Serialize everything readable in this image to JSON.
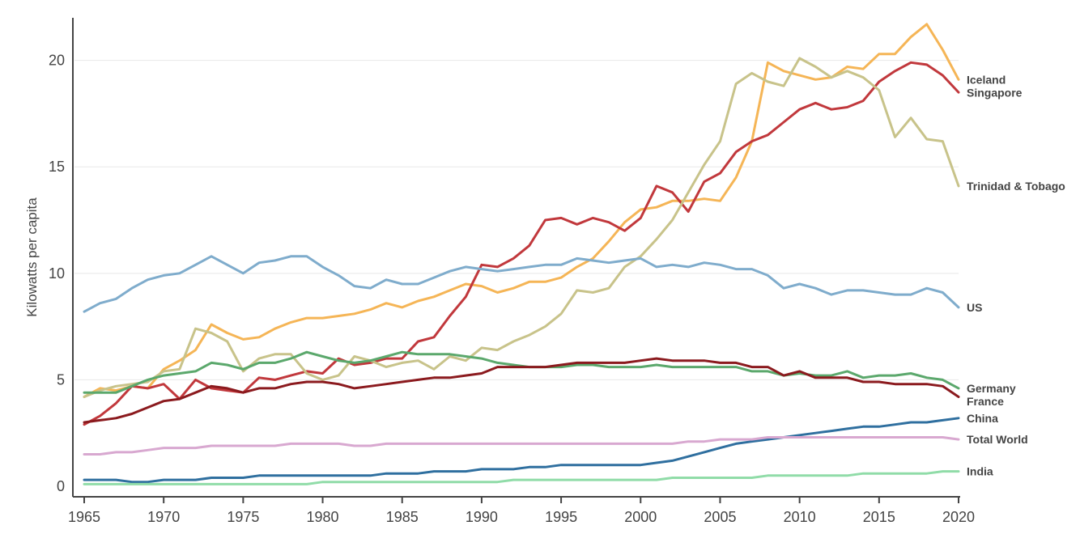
{
  "chart_data": {
    "type": "line",
    "title": "",
    "xlabel": "",
    "ylabel": "Kilowatts per capita",
    "xlim": [
      1965,
      2020
    ],
    "ylim": [
      0,
      22
    ],
    "grid": true,
    "legend": "none (series names printed at right end of each line)",
    "x_ticks": [
      1965,
      1970,
      1975,
      1980,
      1985,
      1990,
      1995,
      2000,
      2005,
      2010,
      2015,
      2020
    ],
    "y_ticks": [
      0,
      5,
      10,
      15,
      20
    ],
    "series": [
      {
        "name": "Iceland",
        "color": "#f5b556",
        "values": [
          4.2,
          4.6,
          4.5,
          4.7,
          4.6,
          5.5,
          5.9,
          6.4,
          7.6,
          7.2,
          6.9,
          7.0,
          7.4,
          7.7,
          7.9,
          7.9,
          8.0,
          8.1,
          8.3,
          8.6,
          8.4,
          8.7,
          8.9,
          9.2,
          9.5,
          9.4,
          9.1,
          9.3,
          9.6,
          9.6,
          9.8,
          10.3,
          10.7,
          11.5,
          12.4,
          13.0,
          13.1,
          13.4,
          13.4,
          13.5,
          13.4,
          14.5,
          16.2,
          19.9,
          19.5,
          19.3,
          19.1,
          19.2,
          19.7,
          19.6,
          20.3,
          20.3,
          21.1,
          21.7,
          20.5,
          19.1
        ]
      },
      {
        "name": "Singapore",
        "color": "#c1383c",
        "values": [
          2.9,
          3.3,
          3.9,
          4.7,
          4.6,
          4.8,
          4.1,
          5.0,
          4.6,
          4.5,
          4.4,
          5.1,
          5.0,
          5.2,
          5.4,
          5.3,
          6.0,
          5.7,
          5.8,
          6.0,
          6.0,
          6.8,
          7.0,
          8.0,
          8.9,
          10.4,
          10.3,
          10.7,
          11.3,
          12.5,
          12.6,
          12.3,
          12.6,
          12.4,
          12.0,
          12.6,
          14.1,
          13.8,
          12.9,
          14.3,
          14.7,
          15.7,
          16.2,
          16.5,
          17.1,
          17.7,
          18.0,
          17.7,
          17.8,
          18.1,
          19.0,
          19.5,
          19.9,
          19.8,
          19.3,
          18.5
        ]
      },
      {
        "name": "Trinidad & Tobago",
        "color": "#c8c38a",
        "values": [
          4.2,
          4.5,
          4.7,
          4.8,
          4.9,
          5.4,
          5.5,
          7.4,
          7.2,
          6.8,
          5.4,
          6.0,
          6.2,
          6.2,
          5.3,
          5.0,
          5.2,
          6.1,
          5.9,
          5.6,
          5.8,
          5.9,
          5.5,
          6.1,
          5.9,
          6.5,
          6.4,
          6.8,
          7.1,
          7.5,
          8.1,
          9.2,
          9.1,
          9.3,
          10.3,
          10.8,
          11.6,
          12.5,
          13.8,
          15.1,
          16.2,
          18.9,
          19.4,
          19.0,
          18.8,
          20.1,
          19.7,
          19.2,
          19.5,
          19.2,
          18.6,
          16.4,
          17.3,
          16.3,
          16.2,
          14.1
        ]
      },
      {
        "name": "US",
        "color": "#7faccc",
        "values": [
          8.2,
          8.6,
          8.8,
          9.3,
          9.7,
          9.9,
          10.0,
          10.4,
          10.8,
          10.4,
          10.0,
          10.5,
          10.6,
          10.8,
          10.8,
          10.3,
          9.9,
          9.4,
          9.3,
          9.7,
          9.5,
          9.5,
          9.8,
          10.1,
          10.3,
          10.2,
          10.1,
          10.2,
          10.3,
          10.4,
          10.4,
          10.7,
          10.6,
          10.5,
          10.6,
          10.7,
          10.3,
          10.4,
          10.3,
          10.5,
          10.4,
          10.2,
          10.2,
          9.9,
          9.3,
          9.5,
          9.3,
          9.0,
          9.2,
          9.2,
          9.1,
          9.0,
          9.0,
          9.3,
          9.1,
          8.4
        ]
      },
      {
        "name": "Germany",
        "color": "#5ba86c",
        "values": [
          4.4,
          4.4,
          4.4,
          4.7,
          5.0,
          5.2,
          5.3,
          5.4,
          5.8,
          5.7,
          5.5,
          5.8,
          5.8,
          6.0,
          6.3,
          6.1,
          5.9,
          5.8,
          5.9,
          6.1,
          6.3,
          6.2,
          6.2,
          6.2,
          6.1,
          6.0,
          5.8,
          5.7,
          5.6,
          5.6,
          5.6,
          5.7,
          5.7,
          5.6,
          5.6,
          5.6,
          5.7,
          5.6,
          5.6,
          5.6,
          5.6,
          5.6,
          5.4,
          5.4,
          5.2,
          5.3,
          5.2,
          5.2,
          5.4,
          5.1,
          5.2,
          5.2,
          5.3,
          5.1,
          5.0,
          4.6
        ]
      },
      {
        "name": "France",
        "color": "#8b1a1e",
        "values": [
          3.0,
          3.1,
          3.2,
          3.4,
          3.7,
          4.0,
          4.1,
          4.4,
          4.7,
          4.6,
          4.4,
          4.6,
          4.6,
          4.8,
          4.9,
          4.9,
          4.8,
          4.6,
          4.7,
          4.8,
          4.9,
          5.0,
          5.1,
          5.1,
          5.2,
          5.3,
          5.6,
          5.6,
          5.6,
          5.6,
          5.7,
          5.8,
          5.8,
          5.8,
          5.8,
          5.9,
          6.0,
          5.9,
          5.9,
          5.9,
          5.8,
          5.8,
          5.6,
          5.6,
          5.2,
          5.4,
          5.1,
          5.1,
          5.1,
          4.9,
          4.9,
          4.8,
          4.8,
          4.8,
          4.7,
          4.2
        ]
      },
      {
        "name": "China",
        "color": "#2f6f9f",
        "values": [
          0.3,
          0.3,
          0.3,
          0.2,
          0.2,
          0.3,
          0.3,
          0.3,
          0.4,
          0.4,
          0.4,
          0.5,
          0.5,
          0.5,
          0.5,
          0.5,
          0.5,
          0.5,
          0.5,
          0.6,
          0.6,
          0.6,
          0.7,
          0.7,
          0.7,
          0.8,
          0.8,
          0.8,
          0.9,
          0.9,
          1.0,
          1.0,
          1.0,
          1.0,
          1.0,
          1.0,
          1.1,
          1.2,
          1.4,
          1.6,
          1.8,
          2.0,
          2.1,
          2.2,
          2.3,
          2.4,
          2.5,
          2.6,
          2.7,
          2.8,
          2.8,
          2.9,
          3.0,
          3.0,
          3.1,
          3.2
        ]
      },
      {
        "name": "Total World",
        "color": "#d8a8d0",
        "values": [
          1.5,
          1.5,
          1.6,
          1.6,
          1.7,
          1.8,
          1.8,
          1.8,
          1.9,
          1.9,
          1.9,
          1.9,
          1.9,
          2.0,
          2.0,
          2.0,
          2.0,
          1.9,
          1.9,
          2.0,
          2.0,
          2.0,
          2.0,
          2.0,
          2.0,
          2.0,
          2.0,
          2.0,
          2.0,
          2.0,
          2.0,
          2.0,
          2.0,
          2.0,
          2.0,
          2.0,
          2.0,
          2.0,
          2.1,
          2.1,
          2.2,
          2.2,
          2.2,
          2.3,
          2.3,
          2.3,
          2.3,
          2.3,
          2.3,
          2.3,
          2.3,
          2.3,
          2.3,
          2.3,
          2.3,
          2.2
        ]
      },
      {
        "name": "India",
        "color": "#90dca8",
        "values": [
          0.1,
          0.1,
          0.1,
          0.1,
          0.1,
          0.1,
          0.1,
          0.1,
          0.1,
          0.1,
          0.1,
          0.1,
          0.1,
          0.1,
          0.1,
          0.2,
          0.2,
          0.2,
          0.2,
          0.2,
          0.2,
          0.2,
          0.2,
          0.2,
          0.2,
          0.2,
          0.2,
          0.3,
          0.3,
          0.3,
          0.3,
          0.3,
          0.3,
          0.3,
          0.3,
          0.3,
          0.3,
          0.4,
          0.4,
          0.4,
          0.4,
          0.4,
          0.4,
          0.5,
          0.5,
          0.5,
          0.5,
          0.5,
          0.5,
          0.6,
          0.6,
          0.6,
          0.6,
          0.6,
          0.7,
          0.7
        ]
      }
    ]
  }
}
